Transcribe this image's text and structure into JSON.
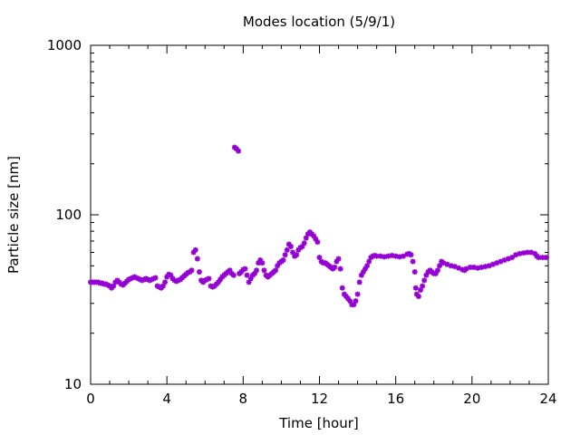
{
  "chart_data": {
    "type": "scatter",
    "title": "Modes location (5/9/1)",
    "xlabel": "Time [hour]",
    "ylabel": "Particle size [nm]",
    "xlim": [
      0,
      24
    ],
    "ylim": [
      10,
      1000
    ],
    "yscale": "log",
    "grid": false,
    "xticks": [
      0,
      4,
      8,
      12,
      16,
      20,
      24
    ],
    "xtick_labels": [
      "0",
      "4",
      "8",
      "12",
      "16",
      "20",
      "24"
    ],
    "yticks": [
      10,
      100,
      1000
    ],
    "ytick_labels": [
      "10",
      "100",
      "1000"
    ],
    "marker_color": "#9400d3",
    "points": [
      [
        0.0,
        40
      ],
      [
        0.1,
        40
      ],
      [
        0.2,
        40
      ],
      [
        0.3,
        40
      ],
      [
        0.4,
        40
      ],
      [
        0.5,
        39.5
      ],
      [
        0.6,
        39.5
      ],
      [
        0.7,
        39
      ],
      [
        0.8,
        39
      ],
      [
        0.9,
        38.5
      ],
      [
        1.0,
        38
      ],
      [
        1.1,
        37
      ],
      [
        1.2,
        38
      ],
      [
        1.3,
        40
      ],
      [
        1.4,
        41
      ],
      [
        1.5,
        40
      ],
      [
        1.6,
        39
      ],
      [
        1.7,
        38.5
      ],
      [
        1.8,
        39.5
      ],
      [
        1.9,
        40.5
      ],
      [
        2.0,
        41.5
      ],
      [
        2.1,
        42
      ],
      [
        2.2,
        42.5
      ],
      [
        2.3,
        43
      ],
      [
        2.4,
        42.5
      ],
      [
        2.5,
        42
      ],
      [
        2.6,
        41.5
      ],
      [
        2.7,
        41
      ],
      [
        2.8,
        41.5
      ],
      [
        2.9,
        42
      ],
      [
        3.0,
        41.5
      ],
      [
        3.1,
        41
      ],
      [
        3.2,
        41.5
      ],
      [
        3.3,
        42
      ],
      [
        3.4,
        42.5
      ],
      [
        3.5,
        38
      ],
      [
        3.6,
        37.5
      ],
      [
        3.7,
        37
      ],
      [
        3.8,
        38
      ],
      [
        3.9,
        40
      ],
      [
        4.0,
        43
      ],
      [
        4.1,
        44.5
      ],
      [
        4.2,
        44
      ],
      [
        4.3,
        42
      ],
      [
        4.4,
        41
      ],
      [
        4.5,
        40.5
      ],
      [
        4.6,
        41
      ],
      [
        4.7,
        41.5
      ],
      [
        4.8,
        42.5
      ],
      [
        4.9,
        43.5
      ],
      [
        5.0,
        44.5
      ],
      [
        5.1,
        45.5
      ],
      [
        5.2,
        46
      ],
      [
        5.3,
        47
      ],
      [
        5.4,
        60
      ],
      [
        5.5,
        62
      ],
      [
        5.6,
        55
      ],
      [
        5.7,
        46
      ],
      [
        5.8,
        41
      ],
      [
        5.9,
        40
      ],
      [
        6.0,
        41
      ],
      [
        6.1,
        41.5
      ],
      [
        6.2,
        42
      ],
      [
        6.3,
        38
      ],
      [
        6.4,
        37.5
      ],
      [
        6.5,
        38
      ],
      [
        6.6,
        39
      ],
      [
        6.7,
        40
      ],
      [
        6.8,
        41.5
      ],
      [
        6.9,
        43
      ],
      [
        7.0,
        44
      ],
      [
        7.1,
        45
      ],
      [
        7.2,
        46
      ],
      [
        7.3,
        47
      ],
      [
        7.4,
        45
      ],
      [
        7.5,
        44
      ],
      [
        7.55,
        250
      ],
      [
        7.65,
        245
      ],
      [
        7.75,
        238
      ],
      [
        7.8,
        45
      ],
      [
        7.9,
        46
      ],
      [
        8.0,
        47.5
      ],
      [
        8.1,
        48
      ],
      [
        8.2,
        44
      ],
      [
        8.3,
        40
      ],
      [
        8.4,
        42
      ],
      [
        8.5,
        44
      ],
      [
        8.6,
        45
      ],
      [
        8.7,
        47
      ],
      [
        8.8,
        52
      ],
      [
        8.9,
        54
      ],
      [
        9.0,
        52
      ],
      [
        9.1,
        47
      ],
      [
        9.2,
        44
      ],
      [
        9.3,
        43
      ],
      [
        9.4,
        44
      ],
      [
        9.5,
        45
      ],
      [
        9.6,
        46
      ],
      [
        9.7,
        47
      ],
      [
        9.8,
        50
      ],
      [
        9.9,
        52
      ],
      [
        10.0,
        53
      ],
      [
        10.1,
        54
      ],
      [
        10.2,
        58
      ],
      [
        10.3,
        62
      ],
      [
        10.4,
        67
      ],
      [
        10.5,
        65
      ],
      [
        10.6,
        60
      ],
      [
        10.7,
        57
      ],
      [
        10.8,
        58
      ],
      [
        10.9,
        62
      ],
      [
        11.0,
        64
      ],
      [
        11.1,
        65
      ],
      [
        11.2,
        68
      ],
      [
        11.3,
        73
      ],
      [
        11.4,
        77
      ],
      [
        11.5,
        79
      ],
      [
        11.6,
        77
      ],
      [
        11.7,
        75
      ],
      [
        11.8,
        72
      ],
      [
        11.9,
        69
      ],
      [
        12.0,
        56
      ],
      [
        12.1,
        53
      ],
      [
        12.2,
        52
      ],
      [
        12.3,
        52
      ],
      [
        12.4,
        51
      ],
      [
        12.5,
        50
      ],
      [
        12.6,
        49
      ],
      [
        12.7,
        48
      ],
      [
        12.8,
        49
      ],
      [
        12.9,
        53
      ],
      [
        13.0,
        55
      ],
      [
        13.1,
        48
      ],
      [
        13.2,
        37
      ],
      [
        13.3,
        34
      ],
      [
        13.4,
        33
      ],
      [
        13.5,
        32
      ],
      [
        13.6,
        31
      ],
      [
        13.7,
        29.5
      ],
      [
        13.8,
        29.5
      ],
      [
        13.9,
        31
      ],
      [
        14.0,
        34
      ],
      [
        14.1,
        40
      ],
      [
        14.2,
        44
      ],
      [
        14.3,
        46
      ],
      [
        14.4,
        48
      ],
      [
        14.5,
        50
      ],
      [
        14.6,
        53
      ],
      [
        14.7,
        56
      ],
      [
        14.8,
        57
      ],
      [
        14.9,
        57.5
      ],
      [
        15.0,
        57
      ],
      [
        15.2,
        57
      ],
      [
        15.4,
        56.5
      ],
      [
        15.6,
        57
      ],
      [
        15.8,
        57.5
      ],
      [
        16.0,
        57
      ],
      [
        16.2,
        56.5
      ],
      [
        16.4,
        57
      ],
      [
        16.6,
        58.5
      ],
      [
        16.7,
        59
      ],
      [
        16.8,
        58
      ],
      [
        16.9,
        53
      ],
      [
        17.0,
        46
      ],
      [
        17.05,
        37
      ],
      [
        17.1,
        34
      ],
      [
        17.2,
        33
      ],
      [
        17.3,
        36
      ],
      [
        17.4,
        38
      ],
      [
        17.5,
        41
      ],
      [
        17.6,
        44
      ],
      [
        17.7,
        46
      ],
      [
        17.8,
        47
      ],
      [
        17.9,
        46
      ],
      [
        18.0,
        45
      ],
      [
        18.1,
        45
      ],
      [
        18.2,
        47
      ],
      [
        18.3,
        50
      ],
      [
        18.4,
        53
      ],
      [
        18.5,
        52
      ],
      [
        18.7,
        51
      ],
      [
        18.9,
        50
      ],
      [
        19.1,
        49.5
      ],
      [
        19.3,
        48.5
      ],
      [
        19.5,
        47.5
      ],
      [
        19.6,
        47
      ],
      [
        19.7,
        48
      ],
      [
        19.9,
        49
      ],
      [
        20.1,
        49
      ],
      [
        20.3,
        48.5
      ],
      [
        20.5,
        49
      ],
      [
        20.7,
        49.5
      ],
      [
        20.9,
        50
      ],
      [
        21.1,
        51
      ],
      [
        21.3,
        52
      ],
      [
        21.5,
        53
      ],
      [
        21.7,
        54
      ],
      [
        21.9,
        55
      ],
      [
        22.1,
        56
      ],
      [
        22.3,
        58
      ],
      [
        22.5,
        59
      ],
      [
        22.7,
        59.5
      ],
      [
        22.9,
        60
      ],
      [
        23.1,
        60
      ],
      [
        23.3,
        59
      ],
      [
        23.4,
        57
      ],
      [
        23.5,
        56
      ],
      [
        23.7,
        56
      ],
      [
        23.9,
        56
      ]
    ]
  }
}
